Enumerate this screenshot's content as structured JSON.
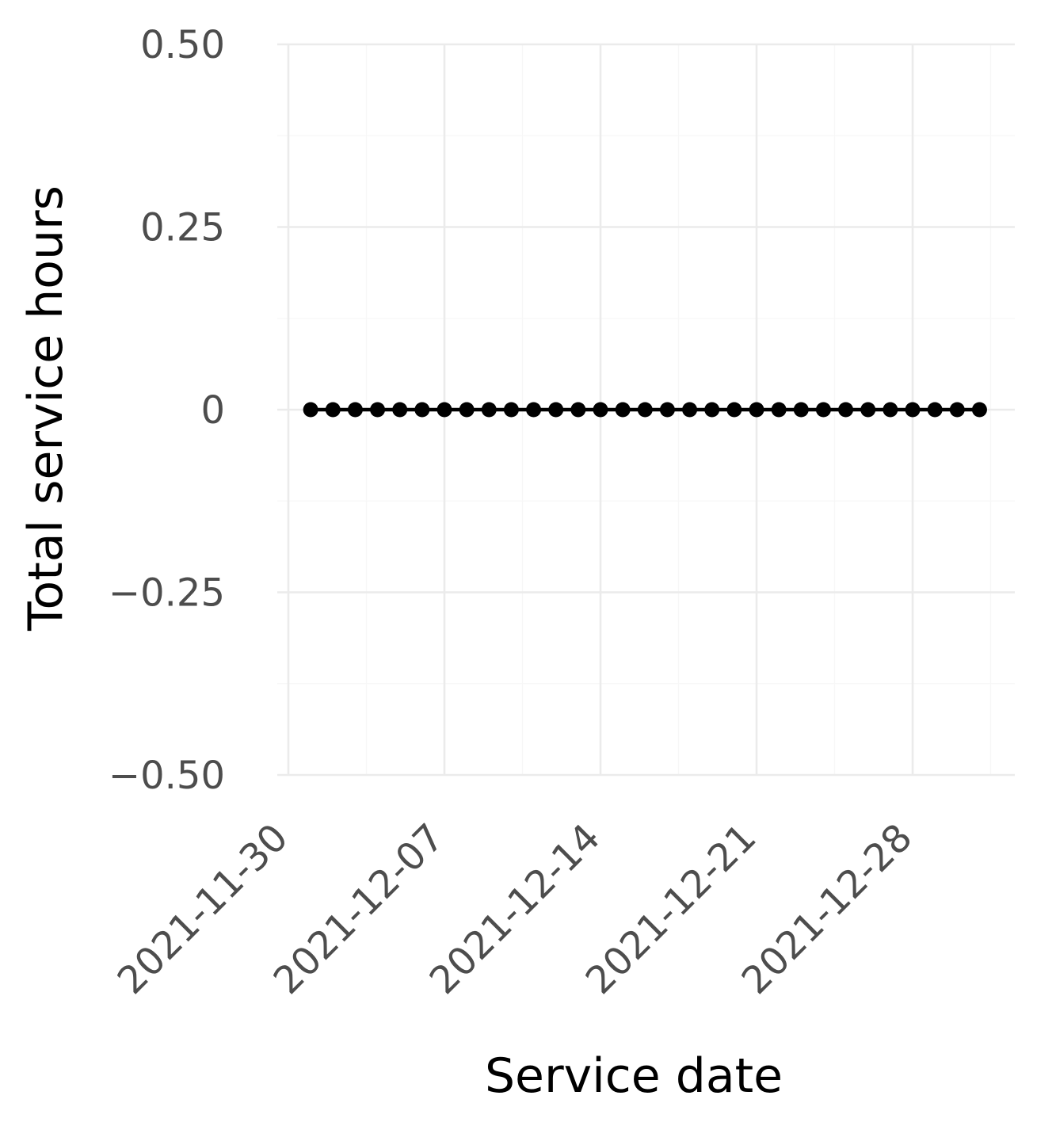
{
  "chart_data": {
    "type": "line",
    "xlabel": "Service date",
    "ylabel": "Total service hours",
    "x_ticks": [
      "2021-11-30",
      "2021-12-07",
      "2021-12-14",
      "2021-12-21",
      "2021-12-28"
    ],
    "y_ticks": [
      "−0.50",
      "−0.25",
      "0",
      "0.25",
      "0.50"
    ],
    "y_tick_values": [
      -0.5,
      -0.25,
      0,
      0.25,
      0.5
    ],
    "ylim": [
      -0.5,
      0.5
    ],
    "xlim": [
      "2021-11-30",
      "2022-01-04"
    ],
    "grid": true,
    "legend": "none",
    "series": [
      {
        "color": "#000000",
        "x": [
          "2021-12-01",
          "2021-12-02",
          "2021-12-03",
          "2021-12-04",
          "2021-12-05",
          "2021-12-06",
          "2021-12-07",
          "2021-12-08",
          "2021-12-09",
          "2021-12-10",
          "2021-12-11",
          "2021-12-12",
          "2021-12-13",
          "2021-12-14",
          "2021-12-15",
          "2021-12-16",
          "2021-12-17",
          "2021-12-18",
          "2021-12-19",
          "2021-12-20",
          "2021-12-21",
          "2021-12-22",
          "2021-12-23",
          "2021-12-24",
          "2021-12-25",
          "2021-12-26",
          "2021-12-27",
          "2021-12-28",
          "2021-12-29",
          "2021-12-30",
          "2021-12-31"
        ],
        "values": [
          0,
          0,
          0,
          0,
          0,
          0,
          0,
          0,
          0,
          0,
          0,
          0,
          0,
          0,
          0,
          0,
          0,
          0,
          0,
          0,
          0,
          0,
          0,
          0,
          0,
          0,
          0,
          0,
          0,
          0,
          0
        ]
      }
    ]
  }
}
